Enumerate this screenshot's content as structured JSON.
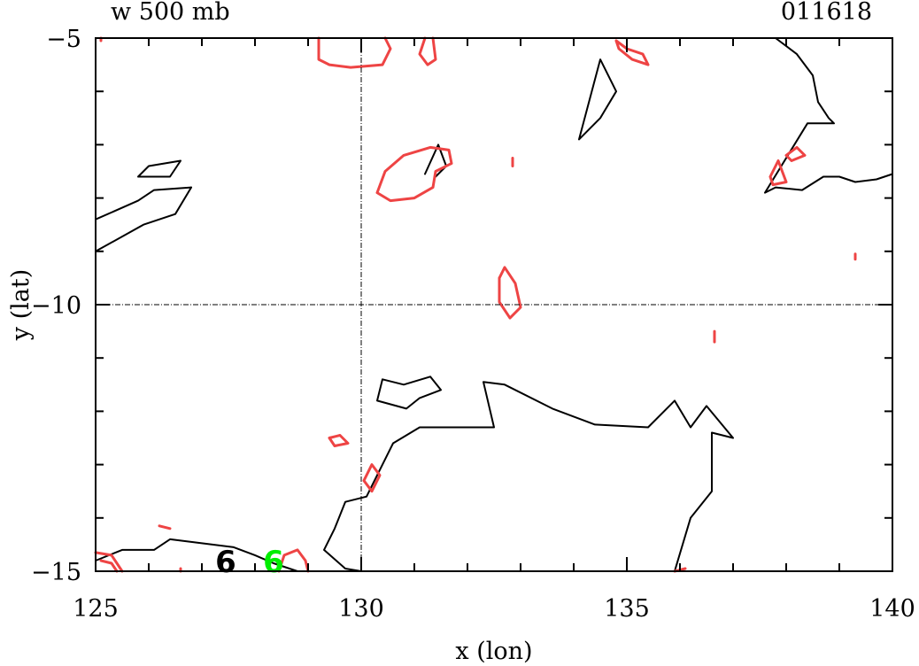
{
  "chart_data": {
    "type": "contour",
    "title": "w 500 mb",
    "date_label": "011618",
    "xlabel": "x (lon)",
    "ylabel": "y (lat)",
    "xlim": [
      125,
      140
    ],
    "ylim": [
      -15,
      -5
    ],
    "x_ticks": [
      125,
      130,
      135,
      140
    ],
    "x_tick_labels": [
      "125",
      "130",
      "135",
      "140"
    ],
    "y_ticks": [
      -15,
      -10,
      -5
    ],
    "y_tick_labels": [
      "−15",
      "−10",
      "−5"
    ],
    "reference_lines": {
      "lon": 130,
      "lat": -10
    },
    "markers": [
      {
        "label": "6",
        "lon": 127.45,
        "lat": -14.8,
        "color": "#000000"
      },
      {
        "label": "6",
        "lon": 128.35,
        "lat": -14.8,
        "color": "#00ee00"
      }
    ],
    "colors": {
      "black_contour": "#000000",
      "red_contour": "#ee4444",
      "marker_green": "#00ee00"
    },
    "series": [
      {
        "color": "black",
        "contours": [
          [
            [
              134.1,
              -6.9
            ],
            [
              134.5,
              -5.4
            ],
            [
              134.8,
              -6.0
            ],
            [
              134.5,
              -6.5
            ],
            [
              134.1,
              -6.9
            ]
          ],
          [
            [
              135.9,
              -15.0
            ],
            [
              136.2,
              -14.0
            ],
            [
              136.6,
              -13.5
            ],
            [
              136.6,
              -12.4
            ],
            [
              137.0,
              -12.5
            ],
            [
              136.5,
              -11.9
            ],
            [
              136.2,
              -12.3
            ],
            [
              135.9,
              -11.8
            ],
            [
              135.4,
              -12.3
            ],
            [
              134.4,
              -12.25
            ],
            [
              133.6,
              -11.95
            ],
            [
              133.5,
              -11.9
            ],
            [
              132.7,
              -11.5
            ],
            [
              132.3,
              -11.45
            ],
            [
              132.5,
              -12.3
            ],
            [
              131.1,
              -12.3
            ],
            [
              130.6,
              -12.6
            ],
            [
              130.1,
              -13.6
            ],
            [
              129.7,
              -13.7
            ],
            [
              129.5,
              -14.2
            ],
            [
              129.3,
              -14.6
            ],
            [
              129.7,
              -14.95
            ],
            [
              130.0,
              -15.0
            ]
          ],
          [
            [
              128.8,
              -15.0
            ],
            [
              128.35,
              -14.85
            ],
            [
              128.0,
              -14.7
            ],
            [
              127.6,
              -14.55
            ],
            [
              127.2,
              -14.5
            ],
            [
              126.4,
              -14.4
            ],
            [
              126.1,
              -14.6
            ],
            [
              125.9,
              -14.6
            ],
            [
              125.5,
              -14.6
            ],
            [
              125.0,
              -14.8
            ]
          ],
          [
            [
              130.3,
              -11.8
            ],
            [
              130.4,
              -11.4
            ],
            [
              130.8,
              -11.5
            ],
            [
              131.3,
              -11.35
            ],
            [
              131.5,
              -11.6
            ],
            [
              131.1,
              -11.75
            ],
            [
              130.85,
              -11.95
            ],
            [
              130.3,
              -11.8
            ]
          ],
          [
            [
              131.2,
              -7.55
            ],
            [
              131.45,
              -7.0
            ],
            [
              131.6,
              -7.4
            ],
            [
              131.4,
              -7.6
            ]
          ],
          [
            [
              126.8,
              -7.8
            ],
            [
              126.1,
              -7.85
            ],
            [
              125.8,
              -8.05
            ],
            [
              125.0,
              -8.4
            ]
          ],
          [
            [
              126.8,
              -7.8
            ],
            [
              126.5,
              -8.3
            ],
            [
              125.9,
              -8.5
            ],
            [
              125.0,
              -9.0
            ]
          ],
          [
            [
              125.8,
              -7.6
            ],
            [
              126.0,
              -7.4
            ],
            [
              126.6,
              -7.3
            ],
            [
              126.4,
              -7.6
            ],
            [
              125.8,
              -7.6
            ]
          ],
          [
            [
              137.1,
              -5.0
            ],
            [
              137.8,
              -5.0
            ],
            [
              138.2,
              -5.3
            ],
            [
              138.5,
              -5.7
            ],
            [
              138.6,
              -6.2
            ],
            [
              138.8,
              -6.5
            ],
            [
              138.9,
              -6.6
            ],
            [
              138.4,
              -6.6
            ],
            [
              137.6,
              -7.9
            ],
            [
              137.8,
              -7.8
            ],
            [
              138.3,
              -7.85
            ],
            [
              138.7,
              -7.6
            ],
            [
              139.0,
              -7.6
            ],
            [
              139.3,
              -7.7
            ],
            [
              139.7,
              -7.65
            ],
            [
              140.0,
              -7.55
            ]
          ]
        ]
      },
      {
        "color": "red",
        "contours": [
          [
            [
              129.2,
              -5.0
            ],
            [
              129.2,
              -5.4
            ],
            [
              129.4,
              -5.5
            ],
            [
              129.8,
              -5.55
            ],
            [
              130.4,
              -5.5
            ],
            [
              130.55,
              -5.2
            ],
            [
              130.45,
              -5.0
            ]
          ],
          [
            [
              131.2,
              -5.0
            ],
            [
              131.1,
              -5.3
            ],
            [
              131.25,
              -5.5
            ],
            [
              131.4,
              -5.4
            ],
            [
              131.35,
              -5.0
            ]
          ],
          [
            [
              134.8,
              -5.05
            ],
            [
              135.0,
              -5.2
            ],
            [
              135.3,
              -5.3
            ],
            [
              135.4,
              -5.5
            ],
            [
              135.1,
              -5.4
            ],
            [
              134.85,
              -5.2
            ],
            [
              134.8,
              -5.05
            ]
          ],
          [
            [
              130.3,
              -7.9
            ],
            [
              130.45,
              -7.5
            ],
            [
              130.8,
              -7.2
            ],
            [
              131.3,
              -7.05
            ],
            [
              131.65,
              -7.1
            ],
            [
              131.7,
              -7.35
            ],
            [
              131.4,
              -7.5
            ],
            [
              131.35,
              -7.8
            ],
            [
              131.0,
              -8.0
            ],
            [
              130.55,
              -8.05
            ],
            [
              130.3,
              -7.9
            ]
          ],
          [
            [
              132.6,
              -9.5
            ],
            [
              132.7,
              -9.3
            ],
            [
              132.9,
              -9.6
            ],
            [
              133.0,
              -10.05
            ],
            [
              132.8,
              -10.25
            ],
            [
              132.6,
              -9.95
            ],
            [
              132.6,
              -9.5
            ]
          ],
          [
            [
              137.7,
              -7.6
            ],
            [
              137.85,
              -7.3
            ],
            [
              138.0,
              -7.7
            ],
            [
              137.75,
              -7.75
            ],
            [
              137.7,
              -7.6
            ]
          ],
          [
            [
              138.0,
              -7.2
            ],
            [
              138.2,
              -7.05
            ],
            [
              138.35,
              -7.2
            ],
            [
              138.1,
              -7.3
            ],
            [
              138.0,
              -7.2
            ]
          ],
          [
            [
              129.4,
              -12.5
            ],
            [
              129.6,
              -12.45
            ],
            [
              129.75,
              -12.6
            ],
            [
              129.5,
              -12.65
            ],
            [
              129.4,
              -12.5
            ]
          ],
          [
            [
              130.05,
              -13.3
            ],
            [
              130.2,
              -13.0
            ],
            [
              130.35,
              -13.2
            ],
            [
              130.2,
              -13.5
            ],
            [
              130.05,
              -13.3
            ]
          ],
          [
            [
              128.45,
              -15.0
            ],
            [
              128.55,
              -14.7
            ],
            [
              128.8,
              -14.6
            ],
            [
              128.95,
              -14.8
            ],
            [
              129.0,
              -15.0
            ]
          ],
          [
            [
              125.0,
              -14.65
            ],
            [
              125.3,
              -14.7
            ],
            [
              125.5,
              -15.0
            ]
          ],
          [
            [
              125.1,
              -14.8
            ],
            [
              125.3,
              -14.85
            ],
            [
              125.4,
              -15.0
            ]
          ],
          [
            [
              126.2,
              -14.15
            ],
            [
              126.4,
              -14.2
            ]
          ],
          [
            [
              132.85,
              -7.25
            ],
            [
              132.85,
              -7.4
            ]
          ],
          [
            [
              136.65,
              -10.5
            ],
            [
              136.65,
              -10.7
            ]
          ],
          [
            [
              139.3,
              -9.05
            ],
            [
              139.3,
              -9.15
            ]
          ],
          [
            [
              125.1,
              -5.0
            ],
            [
              125.1,
              -5.05
            ]
          ],
          [
            [
              126.6,
              -15.0
            ],
            [
              126.6,
              -14.95
            ]
          ],
          [
            [
              135.9,
              -15.0
            ],
            [
              136.1,
              -14.95
            ]
          ]
        ]
      }
    ]
  }
}
